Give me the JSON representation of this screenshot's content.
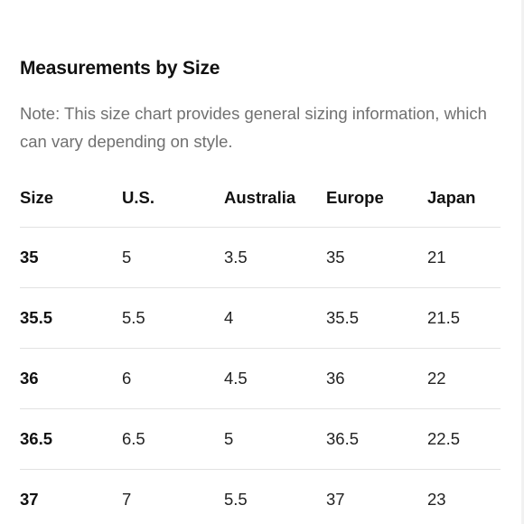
{
  "section": {
    "title": "Measurements by Size",
    "note": "Note: This size chart provides general sizing information, which can vary depending on style."
  },
  "table": {
    "headers": [
      "Size",
      "U.S.",
      "Australia",
      "Europe",
      "Japan"
    ],
    "rows": [
      [
        "35",
        "5",
        "3.5",
        "35",
        "21"
      ],
      [
        "35.5",
        "5.5",
        "4",
        "35.5",
        "21.5"
      ],
      [
        "36",
        "6",
        "4.5",
        "36",
        "22"
      ],
      [
        "36.5",
        "6.5",
        "5",
        "36.5",
        "22.5"
      ],
      [
        "37",
        "7",
        "5.5",
        "37",
        "23"
      ]
    ]
  }
}
